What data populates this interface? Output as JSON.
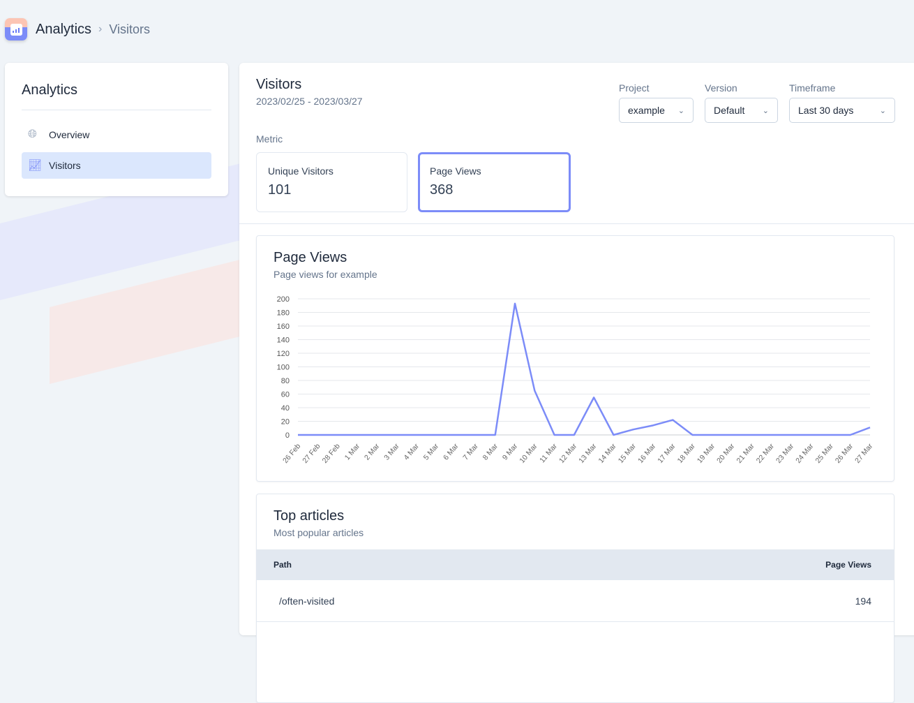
{
  "breadcrumb": {
    "root": "Analytics",
    "current": "Visitors"
  },
  "sidebar": {
    "title": "Analytics",
    "items": [
      {
        "label": "Overview",
        "icon": "globe-icon"
      },
      {
        "label": "Visitors",
        "icon": "presentation-chart-icon",
        "active": true
      }
    ]
  },
  "header": {
    "title": "Visitors",
    "dates": "2023/02/25 - 2023/03/27"
  },
  "filters": {
    "project": {
      "label": "Project",
      "value": "example"
    },
    "version": {
      "label": "Version",
      "value": "Default"
    },
    "timeframe": {
      "label": "Timeframe",
      "value": "Last 30 days"
    }
  },
  "metric": {
    "label": "Metric",
    "cards": [
      {
        "label": "Unique Visitors",
        "value": "101"
      },
      {
        "label": "Page Views",
        "value": "368",
        "selected": true
      }
    ]
  },
  "accent": "#7c8cf8",
  "chart": {
    "title": "Page Views",
    "subtitle": "Page views for example"
  },
  "chart_data": {
    "type": "line",
    "x": [
      "26 Feb",
      "27 Feb",
      "28 Feb",
      "1 Mar",
      "2 Mar",
      "3 Mar",
      "4 Mar",
      "5 Mar",
      "6 Mar",
      "7 Mar",
      "8 Mar",
      "9 Mar",
      "10 Mar",
      "11 Mar",
      "12 Mar",
      "13 Mar",
      "14 Mar",
      "15 Mar",
      "16 Mar",
      "17 Mar",
      "18 Mar",
      "19 Mar",
      "20 Mar",
      "21 Mar",
      "22 Mar",
      "23 Mar",
      "24 Mar",
      "25 Mar",
      "26 Mar",
      "27 Mar"
    ],
    "values": [
      0,
      0,
      0,
      0,
      0,
      0,
      0,
      0,
      0,
      0,
      0,
      193,
      65,
      0,
      0,
      55,
      0,
      8,
      14,
      22,
      0,
      0,
      0,
      0,
      0,
      0,
      0,
      0,
      0,
      11
    ],
    "yticks": [
      0,
      20,
      40,
      60,
      80,
      100,
      120,
      140,
      160,
      180,
      200
    ],
    "ylim": [
      0,
      200
    ],
    "grid": true,
    "color": "#7c8cf8"
  },
  "articles": {
    "title": "Top articles",
    "subtitle": "Most popular articles",
    "columns": [
      "Path",
      "Page Views"
    ],
    "rows": [
      {
        "path": "/often-visited",
        "views": "194"
      }
    ]
  }
}
